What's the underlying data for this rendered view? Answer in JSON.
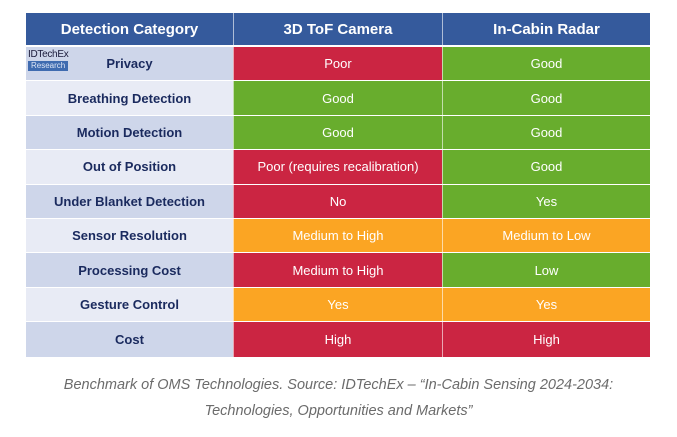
{
  "colors": {
    "header": "#355a9c",
    "poor": "#cb2542",
    "good": "#68ad2d",
    "medium": "#fba523"
  },
  "table": {
    "headers": [
      "Detection Category",
      "3D ToF Camera",
      "In-Cabin Radar"
    ],
    "rows": [
      {
        "category": "Privacy",
        "tof": "Poor",
        "tof_color": "#cb2542",
        "radar": "Good",
        "radar_color": "#68ad2d"
      },
      {
        "category": "Breathing Detection",
        "tof": "Good",
        "tof_color": "#68ad2d",
        "radar": "Good",
        "radar_color": "#68ad2d"
      },
      {
        "category": "Motion Detection",
        "tof": "Good",
        "tof_color": "#68ad2d",
        "radar": "Good",
        "radar_color": "#68ad2d"
      },
      {
        "category": "Out of Position",
        "tof": "Poor (requires recalibration)",
        "tof_color": "#cb2542",
        "radar": "Good",
        "radar_color": "#68ad2d"
      },
      {
        "category": "Under Blanket Detection",
        "tof": "No",
        "tof_color": "#cb2542",
        "radar": "Yes",
        "radar_color": "#68ad2d"
      },
      {
        "category": "Sensor Resolution",
        "tof": "Medium to High",
        "tof_color": "#fba523",
        "radar": "Medium to Low",
        "radar_color": "#fba523"
      },
      {
        "category": "Processing Cost",
        "tof": "Medium to High",
        "tof_color": "#cb2542",
        "radar": "Low",
        "radar_color": "#68ad2d"
      },
      {
        "category": "Gesture Control",
        "tof": "Yes",
        "tof_color": "#fba523",
        "radar": "Yes",
        "radar_color": "#fba523"
      },
      {
        "category": "Cost",
        "tof": "High",
        "tof_color": "#cb2542",
        "radar": "High",
        "radar_color": "#cb2542"
      }
    ]
  },
  "logo": {
    "top": "IDTechEx",
    "bottom": "Research"
  },
  "caption": {
    "line1": "Benchmark of OMS Technologies. Source: IDTechEx – “In-Cabin Sensing 2024-2034:",
    "line2": "Technologies, Opportunities and Markets”"
  }
}
